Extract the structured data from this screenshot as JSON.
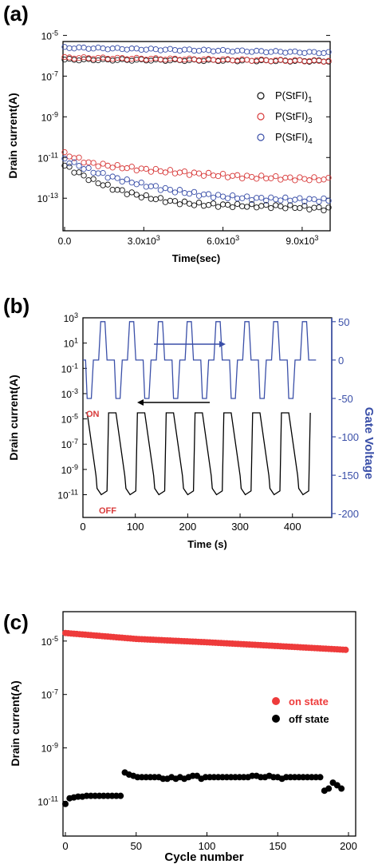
{
  "panels": {
    "a": {
      "label": "(a)"
    },
    "b": {
      "label": "(b)"
    },
    "c": {
      "label": "(c)"
    }
  },
  "chart_data": [
    {
      "type": "scatter",
      "panel": "(a)",
      "xlabel": "Time(sec)",
      "ylabel": "Drain current(A)",
      "xlim": [
        0,
        10000
      ],
      "ylim_log10": [
        -14.6,
        -5.3
      ],
      "y_scale": "log",
      "x_ticks": [
        {
          "value": 0,
          "label": "0.0"
        },
        {
          "value": 3000,
          "label": "3.0x10",
          "sup": "3"
        },
        {
          "value": 6000,
          "label": "6.0x10",
          "sup": "3"
        },
        {
          "value": 9000,
          "label": "9.0x10",
          "sup": "3"
        }
      ],
      "y_ticks": [
        {
          "exp": -5,
          "base": "10",
          "sup": "-5"
        },
        {
          "exp": -7,
          "base": "10",
          "sup": "-7"
        },
        {
          "exp": -9,
          "base": "10",
          "sup": "-9"
        },
        {
          "exp": -11,
          "base": "10",
          "sup": "-11"
        },
        {
          "exp": -13,
          "base": "10",
          "sup": "-13"
        }
      ],
      "legend_position": "right",
      "marker": "open-circle",
      "series": [
        {
          "name": "P(StFI)",
          "sub": "1",
          "color": "#111111",
          "on_state": {
            "x": [
              0,
              10000
            ],
            "y": [
              "6.5e-7",
              "5.5e-7"
            ]
          },
          "off_state": {
            "x": [
              0,
              1000,
              2000,
              3000,
              4000,
              5000,
              6000,
              7000,
              8000,
              9000,
              10000
            ],
            "y": [
              "4.0e-12",
              "8.0e-13",
              "2.5e-13",
              "1.2e-13",
              "7.0e-14",
              "5.0e-14",
              "4.5e-14",
              "4.2e-14",
              "4.0e-14",
              "3.5e-14",
              "3.0e-14"
            ]
          }
        },
        {
          "name": "P(StFI)",
          "sub": "3",
          "color": "#d83a3a",
          "on_state": {
            "x": [
              0,
              10000
            ],
            "y": [
              "8.0e-7",
              "5.5e-7"
            ]
          },
          "off_state": {
            "x": [
              0,
              1000,
              2000,
              3000,
              4000,
              5000,
              6000,
              7000,
              8000,
              9000,
              10000
            ],
            "y": [
              "1.5e-11",
              "5.0e-12",
              "3.5e-12",
              "2.6e-12",
              "2.0e-12",
              "1.6e-12",
              "1.3e-12",
              "1.1e-12",
              "1.0e-12",
              "9.0e-13",
              "8.5e-13"
            ]
          }
        },
        {
          "name": "P(StFI)",
          "sub": "4",
          "color": "#3a4fa8",
          "on_state": {
            "x": [
              0,
              10000
            ],
            "y": [
              "2.5e-6",
              "1.4e-6"
            ]
          },
          "off_state": {
            "x": [
              0,
              1000,
              2000,
              3000,
              4000,
              5000,
              6000,
              7000,
              8000,
              9000,
              10000
            ],
            "y": [
              "8.0e-12",
              "2.2e-12",
              "9.0e-13",
              "4.5e-13",
              "2.5e-13",
              "1.6e-13",
              "1.2e-13",
              "1.0e-13",
              "9.0e-14",
              "8.5e-14",
              "8.0e-14"
            ]
          }
        }
      ]
    },
    {
      "type": "line",
      "panel": "(b)",
      "xlabel": "Time (s)",
      "ylabel": "Drain current(A)",
      "y2label": "Gate Voltage",
      "xlim": [
        0,
        475
      ],
      "ylim_log10": [
        -12.8,
        3
      ],
      "y_scale": "log",
      "y2lim": [
        -205,
        55
      ],
      "x_ticks": [
        0,
        100,
        200,
        300,
        400
      ],
      "y_ticks": [
        {
          "exp": 3,
          "base": "10",
          "sup": "3"
        },
        {
          "exp": 1,
          "base": "10",
          "sup": "1"
        },
        {
          "exp": -1,
          "base": "10",
          "sup": "-1"
        },
        {
          "exp": -3,
          "base": "10",
          "sup": "-3"
        },
        {
          "exp": -5,
          "base": "10",
          "sup": "-5"
        },
        {
          "exp": -7,
          "base": "10",
          "sup": "-7"
        },
        {
          "exp": -9,
          "base": "10",
          "sup": "-9"
        },
        {
          "exp": -11,
          "base": "10",
          "sup": "-11"
        }
      ],
      "y2_ticks": [
        50,
        0,
        -50,
        -100,
        -150,
        -200
      ],
      "annotations": [
        "ON",
        "OFF"
      ],
      "cycle_period_s": 55,
      "first_cycle_start_s": 5,
      "cycles": 8,
      "drain_current_on_A": "3e-5",
      "drain_current_off_A": "1e-11",
      "gate_voltage_levels_V": [
        50,
        0,
        -50
      ],
      "series": [
        {
          "name": "",
          "axis": "left",
          "color": "#000000",
          "note": "drain current"
        },
        {
          "name": "",
          "axis": "right",
          "color": "#3a4fa8",
          "note": "gate voltage"
        }
      ]
    },
    {
      "type": "scatter",
      "panel": "(c)",
      "xlabel": "Cycle number",
      "ylabel": "Drain current(A)",
      "xlim": [
        0,
        200
      ],
      "ylim_log10": [
        -12.3,
        -3.9
      ],
      "y_scale": "log",
      "x_ticks": [
        0,
        50,
        100,
        150,
        200
      ],
      "y_ticks": [
        {
          "exp": -5,
          "base": "10",
          "sup": "-5"
        },
        {
          "exp": -7,
          "base": "10",
          "sup": "-7"
        },
        {
          "exp": -9,
          "base": "10",
          "sup": "-9"
        },
        {
          "exp": -11,
          "base": "10",
          "sup": "-11"
        }
      ],
      "legend_position": "right",
      "marker": "filled-circle",
      "series": [
        {
          "name": "on state",
          "color": "#ee3b3b",
          "x": [
            0,
            50,
            100,
            150,
            198
          ],
          "y": [
            "2.0e-5",
            "1.2e-5",
            "9.0e-6",
            "6.5e-6",
            "4.7e-6"
          ]
        },
        {
          "name": "off state",
          "color": "#000000",
          "x": [
            0,
            3,
            6,
            9,
            12,
            15,
            18,
            21,
            24,
            27,
            30,
            33,
            36,
            39,
            42,
            45,
            48,
            51,
            54,
            57,
            60,
            63,
            66,
            69,
            72,
            75,
            78,
            81,
            84,
            87,
            90,
            93,
            96,
            99,
            102,
            105,
            108,
            111,
            114,
            117,
            120,
            123,
            126,
            129,
            132,
            135,
            138,
            141,
            144,
            147,
            150,
            153,
            156,
            159,
            162,
            165,
            168,
            171,
            174,
            177,
            180,
            183,
            186,
            189,
            192,
            195
          ],
          "y": [
            "8e-12",
            "1.3e-11",
            "1.4e-11",
            "1.5e-11",
            "1.5e-11",
            "1.6e-11",
            "1.6e-11",
            "1.6e-11",
            "1.6e-11",
            "1.6e-11",
            "1.6e-11",
            "1.6e-11",
            "1.6e-11",
            "1.6e-11",
            "1.2e-10",
            "1.0e-10",
            "9e-11",
            "8e-11",
            "8e-11",
            "8e-11",
            "8e-11",
            "8e-11",
            "8e-11",
            "7e-11",
            "7e-11",
            "8e-11",
            "7e-11",
            "8e-11",
            "7e-11",
            "8e-11",
            "9e-11",
            "9e-11",
            "7e-11",
            "8e-11",
            "8e-11",
            "8e-11",
            "8e-11",
            "8e-11",
            "8e-11",
            "8e-11",
            "8e-11",
            "8e-11",
            "8e-11",
            "8e-11",
            "9e-11",
            "9e-11",
            "8e-11",
            "8e-11",
            "9e-11",
            "8e-11",
            "8e-11",
            "7e-11",
            "8e-11",
            "8e-11",
            "8e-11",
            "8e-11",
            "8e-11",
            "8e-11",
            "8e-11",
            "8e-11",
            "8e-11",
            "2.5e-11",
            "3e-11",
            "5e-11",
            "4e-11",
            "3e-11"
          ]
        }
      ]
    }
  ]
}
